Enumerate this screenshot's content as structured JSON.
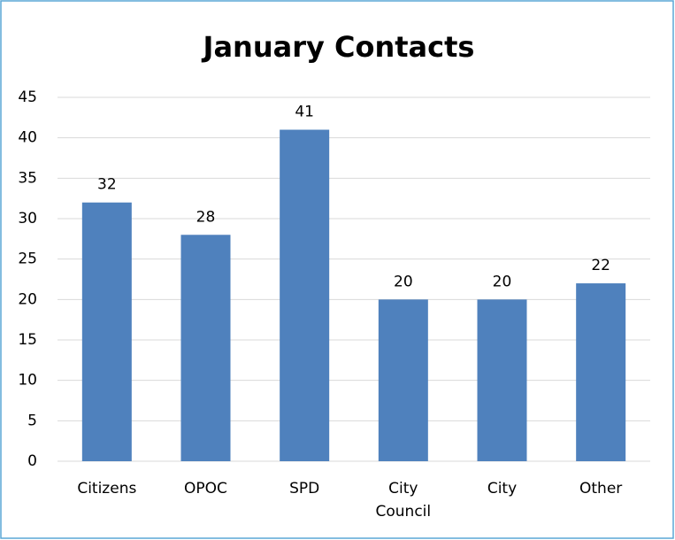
{
  "chart_data": {
    "type": "bar",
    "title": "January Contacts",
    "categories": [
      "Citizens",
      "OPOC",
      "SPD",
      "City Council",
      "City",
      "Other"
    ],
    "values": [
      32,
      28,
      41,
      20,
      20,
      22
    ],
    "color": "#4f81bd",
    "ylim": [
      0,
      45
    ],
    "yticks": [
      0,
      5,
      10,
      15,
      20,
      25,
      30,
      35,
      40,
      45
    ],
    "grid": true
  }
}
